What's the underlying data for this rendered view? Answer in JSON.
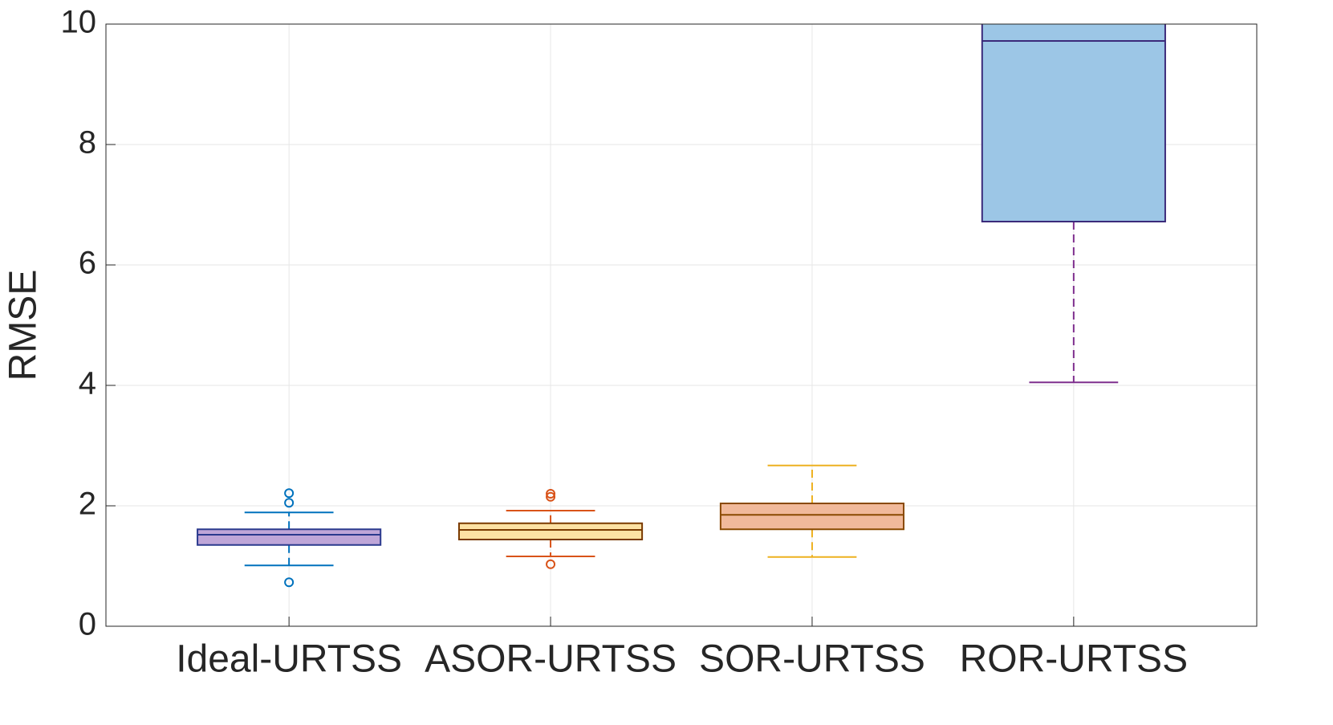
{
  "chart_data": {
    "type": "box",
    "y_label": "RMSE",
    "categories": [
      "Ideal-URTSS",
      "ASOR-URTSS",
      "SOR-URTSS",
      "ROR-URTSS"
    ],
    "boxes": [
      {
        "whisker_low": 1.01,
        "q1": 1.35,
        "median": 1.52,
        "q3": 1.61,
        "whisker_high": 1.89,
        "outliers": [
          0.73,
          2.05,
          2.21
        ],
        "color": "#bfa6d8",
        "edge_color": "#2b3a8e",
        "whisker_color": "#0072bd"
      },
      {
        "whisker_low": 1.16,
        "q1": 1.44,
        "median": 1.6,
        "q3": 1.71,
        "whisker_high": 1.92,
        "outliers": [
          1.03,
          2.15,
          2.2
        ],
        "color": "#fde1a3",
        "edge_color": "#7a3a00",
        "whisker_color": "#d95319"
      },
      {
        "whisker_low": 1.15,
        "q1": 1.61,
        "median": 1.85,
        "q3": 2.04,
        "whisker_high": 2.67,
        "outliers": [],
        "color": "#f1b99a",
        "edge_color": "#8a4a00",
        "whisker_color": "#edb120"
      },
      {
        "whisker_low": 4.05,
        "q1": 6.72,
        "median": 9.72,
        "q3": null,
        "whisker_high": null,
        "outliers": [],
        "color": "#9cc6e6",
        "edge_color": "#3b2a7a",
        "whisker_color": "#7e2f8e"
      }
    ],
    "ylim": [
      0,
      10
    ],
    "yticks": [
      0,
      2,
      4,
      6,
      8,
      10
    ],
    "grid": true
  }
}
